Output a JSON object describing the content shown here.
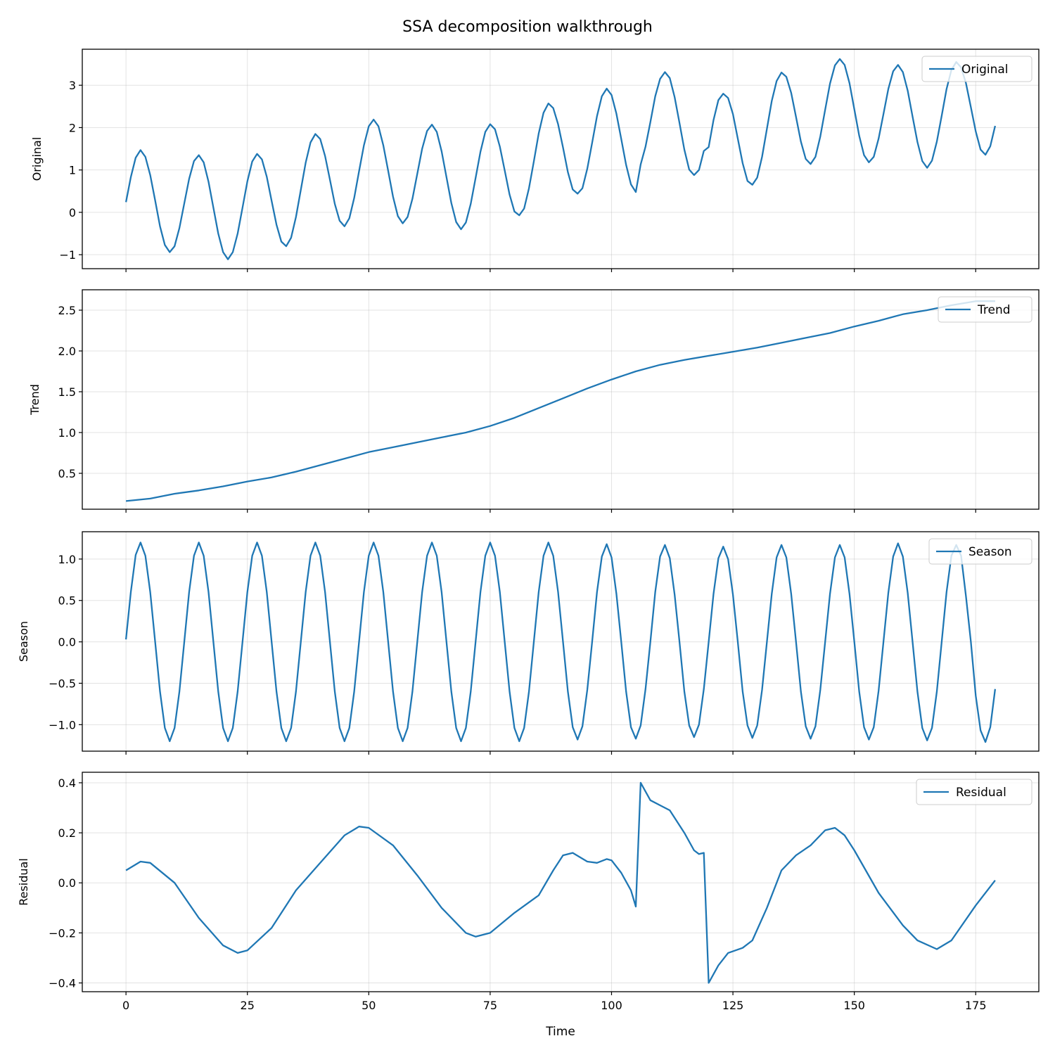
{
  "chart_data": {
    "title": "SSA decomposition walkthrough",
    "type": "line",
    "xlabel": "Time",
    "xlim": [
      -9,
      188
    ],
    "xticks": [
      0,
      25,
      50,
      75,
      100,
      125,
      150,
      175
    ],
    "xtick_labels": [
      "0",
      "25",
      "50",
      "75",
      "100",
      "125",
      "150",
      "175"
    ],
    "grid": true,
    "line_color": "#1f77b4",
    "legend_placement": "top-right",
    "panels": [
      {
        "ylabel": "Original",
        "ylim": [
          -1.33,
          3.85
        ],
        "yticks": [
          -1,
          0,
          1,
          2,
          3
        ],
        "ytick_labels": [
          "−1",
          "0",
          "1",
          "2",
          "3"
        ],
        "series": [
          {
            "name": "Original",
            "x_start": 0,
            "x_step": 1,
            "values": [
              0.24,
              0.83,
              1.29,
              1.47,
              1.31,
              0.88,
              0.28,
              -0.33,
              -0.77,
              -0.94,
              -0.8,
              -0.37,
              0.21,
              0.79,
              1.21,
              1.35,
              1.18,
              0.72,
              0.11,
              -0.5,
              -0.94,
              -1.11,
              -0.94,
              -0.5,
              0.11,
              0.73,
              1.2,
              1.38,
              1.25,
              0.84,
              0.27,
              -0.29,
              -0.69,
              -0.8,
              -0.6,
              -0.11,
              0.53,
              1.17,
              1.65,
              1.85,
              1.73,
              1.33,
              0.77,
              0.2,
              -0.2,
              -0.33,
              -0.14,
              0.34,
              0.97,
              1.58,
              2.03,
              2.19,
              2.03,
              1.58,
              0.98,
              0.37,
              -0.09,
              -0.26,
              -0.11,
              0.32,
              0.91,
              1.5,
              1.92,
              2.07,
              1.9,
              1.44,
              0.83,
              0.22,
              -0.23,
              -0.4,
              -0.24,
              0.2,
              0.81,
              1.43,
              1.9,
              2.08,
              1.96,
              1.55,
              0.99,
              0.42,
              0.02,
              -0.07,
              0.09,
              0.57,
              1.2,
              1.86,
              2.35,
              2.57,
              2.46,
              2.08,
              1.53,
              0.95,
              0.54,
              0.44,
              0.57,
              1.03,
              1.64,
              2.27,
              2.74,
              2.92,
              2.77,
              2.33,
              1.73,
              1.12,
              0.66,
              0.48,
              1.13,
              1.55,
              2.13,
              2.74,
              3.15,
              3.31,
              3.17,
              2.72,
              2.11,
              1.48,
              1.01,
              0.88,
              1.0,
              1.45,
              1.54,
              2.18,
              2.65,
              2.8,
              2.7,
              2.32,
              1.74,
              1.16,
              0.74,
              0.65,
              0.82,
              1.31,
              1.97,
              2.63,
              3.1,
              3.3,
              3.2,
              2.82,
              2.25,
              1.67,
              1.26,
              1.14,
              1.31,
              1.79,
              2.42,
              3.04,
              3.47,
              3.62,
              3.48,
              3.05,
              2.43,
              1.81,
              1.35,
              1.18,
              1.31,
              1.74,
              2.32,
              2.91,
              3.33,
              3.48,
              3.31,
              2.87,
              2.26,
              1.66,
              1.21,
              1.05,
              1.22,
              1.67,
              2.28,
              2.91,
              3.36,
              3.55,
              3.42,
              3.05,
              2.48,
              1.91,
              1.48,
              1.36,
              1.56,
              2.04
            ]
          }
        ]
      },
      {
        "ylabel": "Trend",
        "ylim": [
          0.06,
          2.75
        ],
        "yticks": [
          0.5,
          1.0,
          1.5,
          2.0,
          2.5
        ],
        "ytick_labels": [
          "0.5",
          "1.0",
          "1.5",
          "2.0",
          "2.5"
        ],
        "series": [
          {
            "name": "Trend",
            "x": [
              0,
              5,
              10,
              15,
              20,
              25,
              30,
              35,
              40,
              45,
              50,
              55,
              60,
              65,
              70,
              75,
              80,
              85,
              90,
              95,
              100,
              105,
              110,
              115,
              120,
              125,
              130,
              135,
              140,
              145,
              150,
              155,
              160,
              165,
              170,
              175,
              179
            ],
            "values": [
              0.16,
              0.19,
              0.25,
              0.29,
              0.34,
              0.4,
              0.45,
              0.52,
              0.6,
              0.68,
              0.76,
              0.82,
              0.88,
              0.94,
              1.0,
              1.08,
              1.18,
              1.3,
              1.42,
              1.54,
              1.65,
              1.75,
              1.83,
              1.89,
              1.94,
              1.99,
              2.04,
              2.1,
              2.16,
              2.22,
              2.3,
              2.37,
              2.45,
              2.5,
              2.56,
              2.61,
              2.61
            ]
          }
        ]
      },
      {
        "ylabel": "Season",
        "ylim": [
          -1.32,
          1.33
        ],
        "yticks": [
          -1.0,
          -0.5,
          0.0,
          0.5,
          1.0
        ],
        "ytick_labels": [
          "−1.0",
          "−0.5",
          "0.0",
          "0.5",
          "1.0"
        ],
        "series": [
          {
            "name": "Season",
            "x_start": 0,
            "x_step": 1,
            "values": [
              0.03,
              0.6,
              1.05,
              1.2,
              1.04,
              0.6,
              0,
              -0.6,
              -1.04,
              -1.2,
              -1.04,
              -0.6,
              0,
              0.6,
              1.04,
              1.2,
              1.04,
              0.6,
              0,
              -0.6,
              -1.04,
              -1.2,
              -1.04,
              -0.6,
              0,
              0.6,
              1.04,
              1.2,
              1.04,
              0.6,
              0,
              -0.6,
              -1.04,
              -1.2,
              -1.04,
              -0.6,
              0,
              0.6,
              1.04,
              1.2,
              1.04,
              0.6,
              0,
              -0.6,
              -1.04,
              -1.2,
              -1.04,
              -0.6,
              0,
              0.6,
              1.04,
              1.2,
              1.04,
              0.6,
              0,
              -0.6,
              -1.04,
              -1.2,
              -1.04,
              -0.6,
              0,
              0.6,
              1.04,
              1.2,
              1.04,
              0.6,
              0,
              -0.6,
              -1.04,
              -1.2,
              -1.04,
              -0.6,
              0,
              0.6,
              1.04,
              1.2,
              1.04,
              0.6,
              0,
              -0.6,
              -1.04,
              -1.2,
              -1.04,
              -0.6,
              0,
              0.6,
              1.04,
              1.2,
              1.04,
              0.6,
              0,
              -0.6,
              -1.03,
              -1.18,
              -1.02,
              -0.58,
              0,
              0.6,
              1.03,
              1.18,
              1.02,
              0.58,
              0,
              -0.6,
              -1.03,
              -1.17,
              -1.01,
              -0.57,
              0,
              0.6,
              1.03,
              1.17,
              1.01,
              0.57,
              0,
              -0.6,
              -1.01,
              -1.15,
              -1.0,
              -0.57,
              0,
              0.58,
              1.01,
              1.15,
              1.0,
              0.57,
              0,
              -0.6,
              -1.01,
              -1.16,
              -1.01,
              -0.58,
              0,
              0.58,
              1.02,
              1.17,
              1.02,
              0.58,
              0,
              -0.6,
              -1.02,
              -1.17,
              -1.02,
              -0.58,
              0,
              0.58,
              1.02,
              1.17,
              1.02,
              0.58,
              0,
              -0.6,
              -1.03,
              -1.18,
              -1.03,
              -0.59,
              0,
              0.59,
              1.03,
              1.19,
              1.03,
              0.59,
              0,
              -0.6,
              -1.04,
              -1.19,
              -1.04,
              -0.6,
              0,
              0.6,
              1.04,
              1.17,
              1.04,
              0.55,
              0,
              -0.65,
              -1.07,
              -1.21,
              -1.03,
              -0.57
            ]
          }
        ]
      },
      {
        "ylabel": "Residual",
        "ylim": [
          -0.435,
          0.442
        ],
        "yticks": [
          -0.4,
          -0.2,
          0.0,
          0.2,
          0.4
        ],
        "ytick_labels": [
          "−0.4",
          "−0.2",
          "0.0",
          "0.2",
          "0.4"
        ],
        "series": [
          {
            "name": "Residual",
            "x": [
              0,
              3,
              5,
              10,
              15,
              20,
              23,
              25,
              30,
              35,
              40,
              45,
              48,
              50,
              55,
              60,
              65,
              70,
              72,
              75,
              80,
              85,
              88,
              90,
              92,
              95,
              97,
              99,
              100,
              102,
              104,
              105,
              106,
              108,
              110,
              112,
              115,
              117,
              118,
              119,
              120,
              122,
              124,
              127,
              129,
              132,
              135,
              138,
              141,
              144,
              146,
              148,
              150,
              155,
              160,
              163,
              167,
              170,
              175,
              179
            ],
            "values": [
              0.05,
              0.085,
              0.08,
              0.0,
              -0.14,
              -0.25,
              -0.28,
              -0.27,
              -0.18,
              -0.03,
              0.08,
              0.19,
              0.225,
              0.22,
              0.15,
              0.03,
              -0.1,
              -0.2,
              -0.215,
              -0.2,
              -0.12,
              -0.05,
              0.05,
              0.11,
              0.12,
              0.085,
              0.08,
              0.095,
              0.09,
              0.04,
              -0.03,
              -0.095,
              0.4,
              0.33,
              0.31,
              0.29,
              0.2,
              0.13,
              0.115,
              0.12,
              -0.4,
              -0.33,
              -0.28,
              -0.26,
              -0.23,
              -0.1,
              0.05,
              0.11,
              0.15,
              0.21,
              0.22,
              0.19,
              0.13,
              -0.04,
              -0.17,
              -0.23,
              -0.265,
              -0.23,
              -0.09,
              0.01
            ]
          }
        ]
      }
    ]
  }
}
